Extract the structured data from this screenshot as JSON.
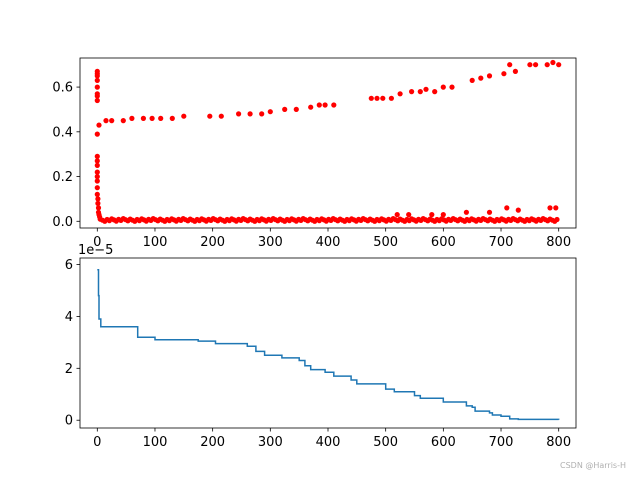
{
  "chart_data": [
    {
      "type": "scatter",
      "color": "#ff0000",
      "xlim": [
        -30,
        830
      ],
      "ylim": [
        -0.03,
        0.73
      ],
      "xticks": [
        0,
        100,
        200,
        300,
        400,
        500,
        600,
        700,
        800
      ],
      "yticks": [
        0.0,
        0.2,
        0.4,
        0.6
      ],
      "ytick_labels": [
        "0.0",
        "0.2",
        "0.4",
        "0.6"
      ],
      "series": [
        {
          "points": [
            [
              0,
              0.67
            ],
            [
              0,
              0.66
            ],
            [
              0,
              0.65
            ],
            [
              0,
              0.63
            ],
            [
              0,
              0.6
            ],
            [
              0,
              0.57
            ],
            [
              0,
              0.56
            ],
            [
              0,
              0.54
            ],
            [
              0,
              0.39
            ],
            [
              3,
              0.43
            ],
            [
              0,
              0.29
            ],
            [
              0,
              0.27
            ],
            [
              0,
              0.25
            ],
            [
              0,
              0.22
            ],
            [
              0,
              0.2
            ],
            [
              0,
              0.18
            ],
            [
              0,
              0.15
            ],
            [
              0,
              0.12
            ],
            [
              1,
              0.1
            ],
            [
              1,
              0.08
            ],
            [
              2,
              0.06
            ],
            [
              2,
              0.04
            ],
            [
              3,
              0.03
            ],
            [
              4,
              0.02
            ],
            [
              15,
              0.45
            ],
            [
              25,
              0.45
            ],
            [
              45,
              0.45
            ],
            [
              60,
              0.46
            ],
            [
              80,
              0.46
            ],
            [
              95,
              0.46
            ],
            [
              110,
              0.46
            ],
            [
              130,
              0.46
            ],
            [
              150,
              0.47
            ],
            [
              195,
              0.47
            ],
            [
              215,
              0.47
            ],
            [
              245,
              0.48
            ],
            [
              265,
              0.48
            ],
            [
              285,
              0.48
            ],
            [
              300,
              0.49
            ],
            [
              325,
              0.5
            ],
            [
              345,
              0.5
            ],
            [
              370,
              0.51
            ],
            [
              385,
              0.52
            ],
            [
              395,
              0.52
            ],
            [
              410,
              0.52
            ],
            [
              475,
              0.55
            ],
            [
              485,
              0.55
            ],
            [
              495,
              0.55
            ],
            [
              510,
              0.55
            ],
            [
              525,
              0.57
            ],
            [
              545,
              0.58
            ],
            [
              560,
              0.58
            ],
            [
              570,
              0.59
            ],
            [
              585,
              0.58
            ],
            [
              600,
              0.6
            ],
            [
              615,
              0.6
            ],
            [
              650,
              0.63
            ],
            [
              665,
              0.64
            ],
            [
              680,
              0.65
            ],
            [
              705,
              0.66
            ],
            [
              715,
              0.7
            ],
            [
              725,
              0.67
            ],
            [
              750,
              0.7
            ],
            [
              760,
              0.7
            ],
            [
              780,
              0.7
            ],
            [
              790,
              0.71
            ],
            [
              800,
              0.7
            ],
            [
              520,
              0.03
            ],
            [
              540,
              0.03
            ],
            [
              580,
              0.03
            ],
            [
              600,
              0.03
            ],
            [
              640,
              0.04
            ],
            [
              680,
              0.04
            ],
            [
              710,
              0.06
            ],
            [
              730,
              0.05
            ],
            [
              785,
              0.06
            ],
            [
              795,
              0.06
            ]
          ]
        }
      ]
    },
    {
      "type": "line",
      "color": "#1f77b4",
      "xlim": [
        -30,
        830
      ],
      "ylim": [
        -0.3,
        6.25
      ],
      "y_scale_label": "1e−5",
      "xticks": [
        0,
        100,
        200,
        300,
        400,
        500,
        600,
        700,
        800
      ],
      "yticks": [
        0,
        2,
        4,
        6
      ],
      "ytick_labels": [
        "0",
        "2",
        "4",
        "6"
      ],
      "series": [
        {
          "x": [
            0,
            2,
            3,
            6,
            70,
            70,
            100,
            175,
            205,
            260,
            275,
            290,
            320,
            350,
            360,
            370,
            395,
            410,
            440,
            450,
            500,
            515,
            550,
            560,
            600,
            640,
            650,
            655,
            680,
            685,
            700,
            715,
            730,
            800
          ],
          "y": [
            5.8,
            4.8,
            3.9,
            3.6,
            3.4,
            3.2,
            3.1,
            3.05,
            2.95,
            2.85,
            2.65,
            2.5,
            2.4,
            2.3,
            2.1,
            1.95,
            1.85,
            1.7,
            1.55,
            1.4,
            1.2,
            1.1,
            0.95,
            0.85,
            0.7,
            0.55,
            0.5,
            0.35,
            0.28,
            0.2,
            0.15,
            0.05,
            0.03,
            0.02
          ]
        }
      ]
    }
  ],
  "watermark": "CSDN @Harris-H"
}
